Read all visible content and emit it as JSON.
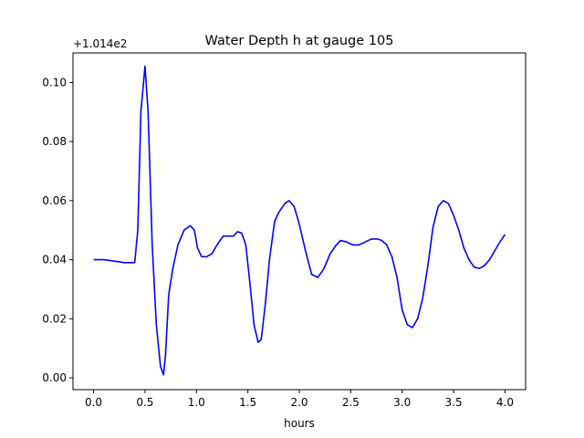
{
  "chart_data": {
    "type": "line",
    "title": "Water Depth h at gauge 105",
    "xlabel": "hours",
    "ylabel": "",
    "y_offset_label": "+1.014e2",
    "xlim": [
      -0.2,
      4.2
    ],
    "ylim": [
      -0.004,
      0.11
    ],
    "x_ticks": [
      0.0,
      0.5,
      1.0,
      1.5,
      2.0,
      2.5,
      3.0,
      3.5,
      4.0
    ],
    "x_tick_labels": [
      "0.0",
      "0.5",
      "1.0",
      "1.5",
      "2.0",
      "2.5",
      "3.0",
      "3.5",
      "4.0"
    ],
    "y_ticks": [
      0.0,
      0.02,
      0.04,
      0.06,
      0.08,
      0.1
    ],
    "y_tick_labels": [
      "0.00",
      "0.02",
      "0.04",
      "0.06",
      "0.08",
      "0.10"
    ],
    "grid": false,
    "series": [
      {
        "color": "#0000ff",
        "x": [
          0.0,
          0.1,
          0.2,
          0.3,
          0.4,
          0.43,
          0.46,
          0.5,
          0.53,
          0.57,
          0.61,
          0.65,
          0.68,
          0.7,
          0.73,
          0.77,
          0.82,
          0.88,
          0.94,
          0.98,
          1.01,
          1.05,
          1.1,
          1.15,
          1.2,
          1.26,
          1.32,
          1.36,
          1.4,
          1.44,
          1.48,
          1.52,
          1.56,
          1.6,
          1.63,
          1.67,
          1.71,
          1.76,
          1.8,
          1.86,
          1.9,
          1.95,
          2.0,
          2.06,
          2.12,
          2.18,
          2.24,
          2.3,
          2.36,
          2.4,
          2.46,
          2.52,
          2.58,
          2.64,
          2.7,
          2.76,
          2.8,
          2.85,
          2.9,
          2.95,
          3.0,
          3.05,
          3.1,
          3.15,
          3.2,
          3.25,
          3.3,
          3.35,
          3.4,
          3.45,
          3.5,
          3.55,
          3.6,
          3.65,
          3.7,
          3.75,
          3.8,
          3.85,
          3.9,
          3.95,
          4.0
        ],
        "values": [
          0.04,
          0.04,
          0.0395,
          0.039,
          0.039,
          0.05,
          0.09,
          0.1055,
          0.09,
          0.045,
          0.018,
          0.004,
          0.001,
          0.008,
          0.028,
          0.037,
          0.045,
          0.05,
          0.0515,
          0.05,
          0.044,
          0.041,
          0.041,
          0.042,
          0.045,
          0.048,
          0.048,
          0.048,
          0.0495,
          0.049,
          0.045,
          0.032,
          0.018,
          0.012,
          0.013,
          0.025,
          0.04,
          0.053,
          0.056,
          0.059,
          0.06,
          0.058,
          0.052,
          0.043,
          0.035,
          0.034,
          0.037,
          0.042,
          0.045,
          0.0465,
          0.046,
          0.045,
          0.045,
          0.046,
          0.047,
          0.047,
          0.0465,
          0.045,
          0.041,
          0.034,
          0.023,
          0.018,
          0.017,
          0.02,
          0.027,
          0.038,
          0.051,
          0.058,
          0.06,
          0.059,
          0.055,
          0.05,
          0.044,
          0.04,
          0.0375,
          0.037,
          0.038,
          0.04,
          0.043,
          0.046,
          0.0485
        ]
      }
    ]
  }
}
